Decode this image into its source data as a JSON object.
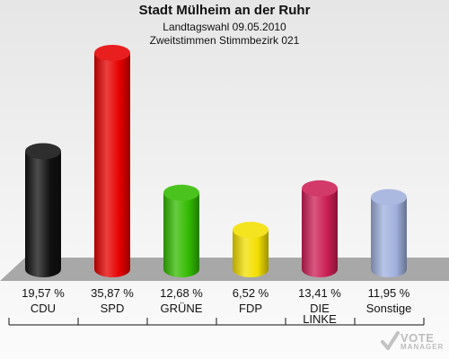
{
  "header": {
    "title": "Stadt Mülheim an der Ruhr",
    "subtitle1": "Landtagswahl 09.05.2010",
    "subtitle2": "Zweitstimmen Stimmbezirk 021"
  },
  "logo": {
    "line1": "VOTE",
    "line2": "MANAGER"
  },
  "chart_data": {
    "type": "bar",
    "title": "Stadt Mülheim an der Ruhr",
    "subtitle": "Landtagswahl 09.05.2010 — Zweitstimmen Stimmbezirk 021",
    "xlabel": "",
    "ylabel": "",
    "grid": false,
    "legend": "none",
    "ylim": [
      0,
      40
    ],
    "categories": [
      "CDU",
      "SPD",
      "GRÜNE",
      "FDP",
      "DIE LINKE",
      "Sonstige"
    ],
    "values": [
      19.57,
      35.87,
      12.68,
      6.52,
      13.41,
      11.95
    ],
    "value_labels": [
      "19,57 %",
      "35,87 %",
      "12,68 %",
      "6,52 %",
      "13,41 %",
      "11,95 %"
    ],
    "colors": [
      "#111111",
      "#e60000",
      "#33bb00",
      "#f2df00",
      "#cc1f55",
      "#a0b0dd"
    ]
  }
}
